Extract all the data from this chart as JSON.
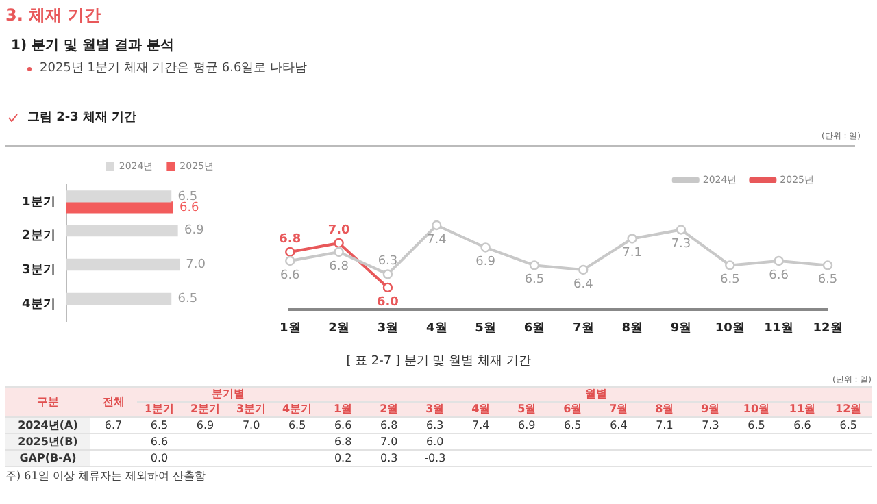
{
  "chart_data": [
    {
      "type": "bar",
      "orientation": "horizontal",
      "title": "3. 체재 기간",
      "subtitle": "1) 분기 및 월별 결과 분석",
      "annotations": [
        "2025년 1분기 체재 기간은 평균 6.6일로 나타남",
        "그림 2-3 체재 기간"
      ],
      "categories": [
        "1분기",
        "2분기",
        "3분기",
        "4분기"
      ],
      "series": [
        {
          "name": "2024년",
          "color": "#d9d9d9",
          "values": [
            6.5,
            6.9,
            7.0,
            6.5
          ],
          "value_labels": [
            "6.5",
            "6.9",
            "7.0",
            "6.5"
          ]
        },
        {
          "name": "2025년",
          "color": "#f25c5c",
          "values": [
            6.6,
            null,
            null,
            null
          ],
          "value_labels": [
            "6.6",
            null,
            null,
            null
          ]
        }
      ],
      "legend": "top",
      "grid": false
    },
    {
      "type": "line",
      "annotations": [
        "(단위 : 일)"
      ],
      "categories": [
        "1월",
        "2월",
        "3월",
        "4월",
        "5월",
        "6월",
        "7월",
        "8월",
        "9월",
        "10월",
        "11월",
        "12월"
      ],
      "series": [
        {
          "name": "2024년",
          "color": "#c8c8c8",
          "values": [
            6.6,
            6.8,
            6.3,
            7.4,
            6.9,
            6.5,
            6.4,
            7.1,
            7.3,
            6.5,
            6.6,
            6.5
          ],
          "value_labels": [
            "6.6",
            "6.8",
            "6.3",
            "7.4",
            "6.9",
            "6.5",
            "6.4",
            "7.1",
            "7.3",
            "6.5",
            "6.6",
            "6.5"
          ]
        },
        {
          "name": "2025년",
          "color": "#e8585a",
          "values": [
            6.8,
            7.0,
            6.0,
            null,
            null,
            null,
            null,
            null,
            null,
            null,
            null,
            null
          ],
          "value_labels": [
            "6.8",
            "7.0",
            "6.0",
            null,
            null,
            null,
            null,
            null,
            null,
            null,
            null,
            null
          ]
        }
      ],
      "legend": "top right",
      "marker": "circle",
      "grid": false
    },
    {
      "type": "heatmap",
      "title": "[ 표 2-7 ] 분기 및 월별 체재 기간",
      "ylabel": "구분",
      "annotations": [
        "(단위 : 일)",
        "분기별",
        "월별",
        "주) 61일 이상 체류자는 제외하여 산출함"
      ],
      "categories": [
        "전체",
        "1분기",
        "2분기",
        "3분기",
        "4분기",
        "1월",
        "2월",
        "3월",
        "4월",
        "5월",
        "6월",
        "7월",
        "8월",
        "9월",
        "10월",
        "11월",
        "12월"
      ],
      "y_categories": [
        "2024년(A)",
        "2025년(B)",
        "GAP(B-A)"
      ],
      "data_labels": true,
      "cells": [
        [
          6.7,
          6.5,
          6.9,
          7.0,
          6.5,
          6.6,
          6.8,
          6.3,
          7.4,
          6.9,
          6.5,
          6.4,
          7.1,
          7.3,
          6.5,
          6.6,
          6.5
        ],
        [
          null,
          6.6,
          null,
          null,
          null,
          6.8,
          7.0,
          6.0,
          null,
          null,
          null,
          null,
          null,
          null,
          null,
          null,
          null
        ],
        [
          null,
          0.0,
          null,
          null,
          null,
          0.2,
          0.3,
          -0.3,
          null,
          null,
          null,
          null,
          null,
          null,
          null,
          null,
          null
        ]
      ],
      "cell_labels": [
        [
          "6.7",
          "6.5",
          "6.9",
          "7.0",
          "6.5",
          "6.6",
          "6.8",
          "6.3",
          "7.4",
          "6.9",
          "6.5",
          "6.4",
          "7.1",
          "7.3",
          "6.5",
          "6.6",
          "6.5"
        ],
        [
          null,
          "6.6",
          null,
          null,
          null,
          "6.8",
          "7.0",
          "6.0",
          null,
          null,
          null,
          null,
          null,
          null,
          null,
          null,
          null
        ],
        [
          null,
          "0.0",
          null,
          null,
          null,
          "0.2",
          "0.3",
          "-0.3",
          null,
          null,
          null,
          null,
          null,
          null,
          null,
          null,
          null
        ]
      ]
    }
  ]
}
